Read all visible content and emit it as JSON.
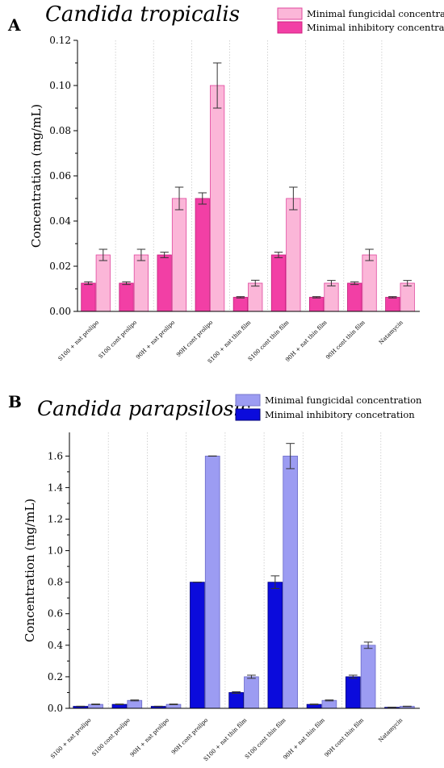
{
  "chart_data": [
    {
      "panel_letter": "A",
      "title": "Candida tropicalis",
      "type": "bar",
      "xlabel": "",
      "ylabel": "Concentration (mg/mL)",
      "ylim": [
        0,
        0.12
      ],
      "yticks": [
        "0.00",
        "0.02",
        "0.04",
        "0.06",
        "0.08",
        "0.10",
        "0.12"
      ],
      "grid": false,
      "legend_position": "top-right",
      "categories": [
        "S100 + nat prolipo",
        "S100 cont prolipo",
        "90H + nat prolipo",
        "90H cont prolipo",
        "S100 + nat thin film",
        "S100 cont thin film",
        "90H + nat thin film",
        "90H cont thin film",
        "Natamycin"
      ],
      "series": [
        {
          "name": "Minimal inhibitory concentration",
          "color": "#f23fa5",
          "values": [
            0.0125,
            0.0125,
            0.025,
            0.05,
            0.00625,
            0.025,
            0.00625,
            0.0125,
            0.00625
          ],
          "errors": [
            0.0006,
            0.0006,
            0.0012,
            0.0025,
            0.0003,
            0.0012,
            0.0003,
            0.0006,
            0.0003
          ]
        },
        {
          "name": "Minimal fungicidal concentration",
          "color": "#fbb6d8",
          "values": [
            0.025,
            0.025,
            0.05,
            0.1,
            0.0125,
            0.05,
            0.0125,
            0.025,
            0.0125
          ],
          "errors": [
            0.0025,
            0.0025,
            0.005,
            0.01,
            0.0013,
            0.005,
            0.0012,
            0.0025,
            0.0012
          ]
        }
      ]
    },
    {
      "panel_letter": "B",
      "title": "Candida parapsilosis",
      "type": "bar",
      "xlabel": "",
      "ylabel": "Concentration (mg/mL)",
      "ylim": [
        0,
        1.75
      ],
      "yticks": [
        "0.0",
        "0.2",
        "0.4",
        "0.6",
        "0.8",
        "1.0",
        "1.2",
        "1.4",
        "1.6"
      ],
      "grid": false,
      "legend_position": "top-right",
      "categories": [
        "S100 + nat  prolipo",
        "S100 cont  prolipo",
        "90H + nat prolipo",
        "90H cont prolipo",
        "S100 + nat thin film",
        "S100 cont thin film",
        "90H + nat thin film",
        "90H cont thin film",
        "Natamycin"
      ],
      "series": [
        {
          "name": "Minimal inhibitory concetration",
          "color": "#0b0bdc",
          "values": [
            0.0125,
            0.025,
            0.0125,
            0.8,
            0.1,
            0.8,
            0.025,
            0.2,
            0.00625
          ],
          "errors": [
            0.001,
            0.002,
            0.001,
            0.0,
            0.005,
            0.04,
            0.002,
            0.01,
            0.0005
          ]
        },
        {
          "name": "Minimal fungicidal concentration",
          "color": "#9c9cf2",
          "values": [
            0.025,
            0.05,
            0.025,
            1.6,
            0.2,
            1.6,
            0.05,
            0.4,
            0.0125
          ],
          "errors": [
            0.002,
            0.003,
            0.002,
            0.0,
            0.01,
            0.08,
            0.003,
            0.02,
            0.001
          ]
        }
      ]
    }
  ]
}
